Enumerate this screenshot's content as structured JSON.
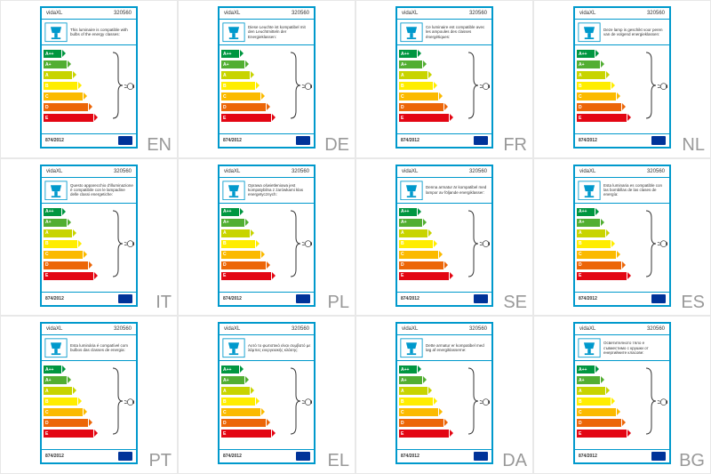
{
  "brand": "vidaXL",
  "product_code": "320560",
  "regulation": "874/2012",
  "energy_classes": [
    {
      "cls": "a-pp",
      "label": "A++"
    },
    {
      "cls": "a-p",
      "label": "A+"
    },
    {
      "cls": "a",
      "label": "A"
    },
    {
      "cls": "b",
      "label": "B"
    },
    {
      "cls": "c",
      "label": "C"
    },
    {
      "cls": "d",
      "label": "D"
    },
    {
      "cls": "e",
      "label": "E"
    }
  ],
  "labels": [
    {
      "lang": "EN",
      "desc": "This luminaire is compatible with bulbs of the energy classes:"
    },
    {
      "lang": "DE",
      "desc": "Diese Leuchte ist kompatibel mit den Leuchtmitteln der Energieklassen:"
    },
    {
      "lang": "FR",
      "desc": "Ce luminaire est compatible avec les ampoules des classes énergétiques:"
    },
    {
      "lang": "NL",
      "desc": "Deze lamp is geschikt voor peren van de volgend energieklassen:"
    },
    {
      "lang": "IT",
      "desc": "Questo apparecchio d'illuminazione è compatibile con le lampadine delle classi energetiche:"
    },
    {
      "lang": "PL",
      "desc": "Oprawa oświetleniowa jest kompatybilna z żarówkami klas energetycznych:"
    },
    {
      "lang": "SE",
      "desc": "Denna armatur är kompatibel med lampor av följande energiklasser:"
    },
    {
      "lang": "ES",
      "desc": "Esta luminaria es compatible con las bombillas de las clases de energía:"
    },
    {
      "lang": "PT",
      "desc": "Esta luminária é compatível com bulbos das classes de energia:"
    },
    {
      "lang": "EL",
      "desc": "Αυτό το φωτιστικό είναι συμβατό με λάμπες ενεργειακής κλάσης:"
    },
    {
      "lang": "DA",
      "desc": "Dette armatur er kompatibel med løg af energiklasserne:"
    },
    {
      "lang": "BG",
      "desc": "Осветителното тяло е съвместимо с крушки от енергийните класове:"
    }
  ]
}
